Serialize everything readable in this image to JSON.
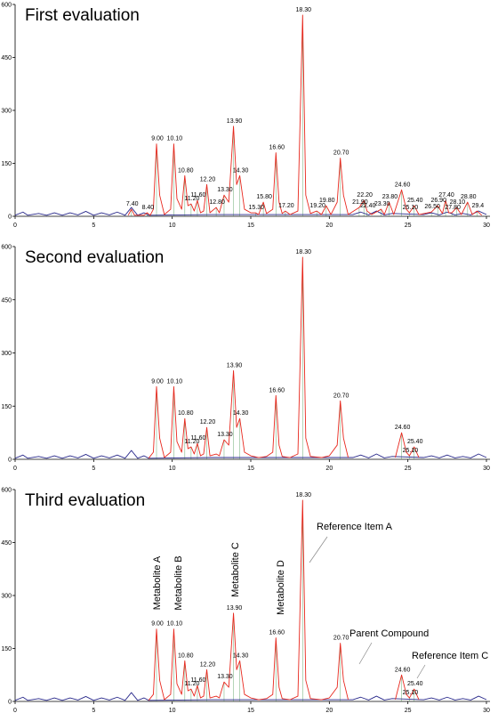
{
  "chart_data": [
    {
      "type": "line",
      "title": "First evaluation",
      "xlim": [
        0,
        30
      ],
      "xticks": [
        0,
        5,
        10,
        15,
        20,
        25,
        30
      ],
      "ylim": [
        0,
        600
      ],
      "yticks": [
        0,
        150,
        300,
        450,
        600
      ],
      "series": [
        {
          "color": "#2b2b8c",
          "x": [
            0,
            0.5,
            0.8,
            1.5,
            2,
            2.5,
            3,
            3.5,
            4,
            4.5,
            5,
            5.5,
            6,
            6.5,
            7,
            7.4,
            7.8,
            8.2,
            8.5,
            12.5,
            15,
            17.5,
            19.5,
            21.5,
            22,
            22.5,
            23,
            23.5,
            24,
            26,
            26.5,
            27,
            27.5,
            28,
            28.5,
            29,
            29.5,
            30
          ],
          "values": [
            3,
            12,
            3,
            8,
            3,
            10,
            3,
            10,
            4,
            14,
            3,
            10,
            4,
            12,
            3,
            25,
            3,
            10,
            3,
            5,
            5,
            5,
            5,
            5,
            12,
            4,
            15,
            4,
            8,
            5,
            10,
            4,
            12,
            4,
            8,
            4,
            15,
            5
          ]
        },
        {
          "color": "#e8281e",
          "x": [
            7.2,
            7.4,
            7.6,
            8.2,
            8.4,
            8.6,
            8.8,
            9.0,
            9.2,
            9.5,
            9.9,
            10.1,
            10.3,
            10.6,
            10.8,
            11.0,
            11.2,
            11.4,
            11.6,
            11.8,
            12.0,
            12.2,
            12.4,
            12.8,
            13.0,
            13.3,
            13.6,
            13.9,
            14.1,
            14.3,
            14.6,
            15.0,
            15.3,
            15.5,
            15.8,
            16.0,
            16.4,
            16.6,
            16.8,
            17.0,
            17.2,
            17.5,
            18.0,
            18.3,
            18.5,
            18.8,
            19.2,
            19.5,
            19.8,
            20.1,
            20.5,
            20.7,
            20.9,
            21.2,
            21.9,
            22.2,
            22.4,
            22.7,
            23.3,
            23.5,
            23.8,
            24.1,
            24.6,
            24.9,
            25.1,
            25.4,
            25.7,
            26.5,
            26.9,
            27.2,
            27.4,
            27.6,
            27.8,
            28.1,
            28.4,
            28.8,
            29.1,
            29.4,
            29.7
          ],
          "values": [
            3,
            20,
            3,
            3,
            10,
            3,
            20,
            205,
            60,
            5,
            20,
            205,
            50,
            20,
            115,
            30,
            35,
            15,
            45,
            10,
            15,
            90,
            10,
            25,
            10,
            60,
            40,
            255,
            90,
            115,
            20,
            10,
            10,
            5,
            40,
            8,
            20,
            180,
            40,
            8,
            15,
            5,
            15,
            570,
            60,
            8,
            15,
            5,
            30,
            5,
            40,
            165,
            60,
            5,
            25,
            45,
            15,
            5,
            20,
            5,
            40,
            5,
            75,
            20,
            10,
            30,
            5,
            12,
            30,
            8,
            45,
            10,
            10,
            25,
            5,
            40,
            5,
            15,
            3
          ]
        }
      ],
      "peaks": {
        "x": [
          7.4,
          8.4,
          9.0,
          10.1,
          10.8,
          11.2,
          11.6,
          12.2,
          12.8,
          13.3,
          13.9,
          14.3,
          15.3,
          15.8,
          16.6,
          17.2,
          18.3,
          19.2,
          19.8,
          20.7,
          21.9,
          22.2,
          22.4,
          23.3,
          23.8,
          24.6,
          25.1,
          25.4,
          26.5,
          26.9,
          27.4,
          27.8,
          28.1,
          28.8,
          29.4
        ],
        "x_labels": [
          "7.40",
          "8.40",
          "9.00",
          "10.10",
          "10.80",
          "11.20",
          "11.60",
          "12.20",
          "12.80",
          "13.30",
          "13.90",
          "14.30",
          "15.30",
          "15.80",
          "16.60",
          "17.20",
          "18.30",
          "19.20",
          "19.80",
          "20.70",
          "21.90",
          "22.20",
          "22.40",
          "23.30",
          "23.80",
          "24.60",
          "25.10",
          "25.40",
          "26.50",
          "26.90",
          "27.40",
          "27.80",
          "28.10",
          "28.80",
          "29.4"
        ],
        "values": [
          20,
          10,
          205,
          205,
          115,
          35,
          45,
          90,
          25,
          60,
          255,
          115,
          10,
          40,
          180,
          15,
          570,
          15,
          30,
          165,
          25,
          45,
          15,
          20,
          40,
          75,
          10,
          30,
          12,
          30,
          45,
          10,
          25,
          40,
          15
        ]
      }
    },
    {
      "type": "line",
      "title": "Second evaluation",
      "xlim": [
        0,
        30
      ],
      "xticks": [
        0,
        5,
        10,
        15,
        20,
        25,
        30
      ],
      "ylim": [
        0,
        600
      ],
      "yticks": [
        0,
        150,
        300,
        450,
        600
      ],
      "series": [
        {
          "color": "#2b2b8c",
          "x": [
            0,
            0.5,
            0.8,
            1.5,
            2,
            2.5,
            3,
            3.5,
            4,
            4.5,
            5,
            5.5,
            6,
            6.5,
            7,
            7.4,
            7.8,
            8.2,
            8.5,
            12.5,
            15,
            17.5,
            19.5,
            21.5,
            22,
            22.5,
            23,
            23.5,
            24,
            26,
            26.5,
            27,
            27.5,
            28,
            28.5,
            29,
            29.5,
            30
          ],
          "values": [
            3,
            12,
            3,
            8,
            3,
            10,
            3,
            10,
            4,
            14,
            3,
            10,
            4,
            12,
            3,
            25,
            3,
            10,
            3,
            5,
            5,
            5,
            5,
            5,
            12,
            4,
            15,
            4,
            8,
            5,
            10,
            4,
            12,
            4,
            8,
            4,
            15,
            5
          ]
        },
        {
          "color": "#e8281e",
          "x": [
            8.5,
            8.8,
            9.0,
            9.2,
            9.5,
            9.9,
            10.1,
            10.3,
            10.6,
            10.8,
            11.0,
            11.2,
            11.4,
            11.6,
            11.8,
            12.0,
            12.2,
            12.4,
            12.8,
            13.0,
            13.3,
            13.6,
            13.9,
            14.1,
            14.3,
            14.6,
            15.0,
            15.5,
            16.0,
            16.4,
            16.6,
            16.8,
            17.0,
            17.5,
            18.0,
            18.3,
            18.5,
            18.8,
            19.5,
            20.0,
            20.5,
            20.7,
            20.9,
            21.2,
            22.0,
            24.2,
            24.6,
            24.9,
            25.1,
            25.4,
            25.7
          ],
          "values": [
            3,
            20,
            205,
            60,
            5,
            20,
            205,
            50,
            20,
            115,
            30,
            35,
            15,
            45,
            10,
            15,
            90,
            10,
            15,
            10,
            55,
            40,
            250,
            90,
            115,
            20,
            10,
            5,
            8,
            20,
            180,
            40,
            8,
            5,
            15,
            570,
            60,
            8,
            5,
            10,
            40,
            165,
            60,
            5,
            null,
            5,
            75,
            20,
            10,
            35,
            5
          ]
        }
      ],
      "peaks": {
        "x": [
          9.0,
          10.1,
          10.8,
          11.2,
          11.6,
          12.2,
          13.3,
          13.9,
          14.3,
          16.6,
          18.3,
          20.7,
          24.6,
          25.1,
          25.4
        ],
        "x_labels": [
          "9.00",
          "10.10",
          "10.80",
          "11.20",
          "11.60",
          "12.20",
          "13.30",
          "13.90",
          "14.30",
          "16.60",
          "18.30",
          "20.70",
          "24.60",
          "25.10",
          "25.40"
        ],
        "values": [
          205,
          205,
          115,
          35,
          45,
          90,
          55,
          250,
          115,
          180,
          570,
          165,
          75,
          10,
          35
        ]
      }
    },
    {
      "type": "line",
      "title": "Third evaluation",
      "xlim": [
        0,
        30
      ],
      "xticks": [
        0,
        5,
        10,
        15,
        20,
        25,
        30
      ],
      "ylim": [
        0,
        600
      ],
      "yticks": [
        0,
        150,
        300,
        450,
        600
      ],
      "series": [
        {
          "color": "#2b2b8c",
          "x": [
            0,
            0.5,
            0.8,
            1.5,
            2,
            2.5,
            3,
            3.5,
            4,
            4.5,
            5,
            5.5,
            6,
            6.5,
            7,
            7.4,
            7.8,
            8.2,
            8.5,
            12.5,
            15,
            17.5,
            19.5,
            21.5,
            22,
            22.5,
            23,
            23.5,
            24,
            26,
            26.5,
            27,
            27.5,
            28,
            28.5,
            29,
            29.5,
            30
          ],
          "values": [
            3,
            12,
            3,
            8,
            3,
            10,
            3,
            10,
            4,
            14,
            3,
            10,
            4,
            12,
            3,
            25,
            3,
            10,
            3,
            5,
            5,
            5,
            5,
            5,
            12,
            4,
            15,
            4,
            8,
            5,
            10,
            4,
            12,
            4,
            8,
            4,
            15,
            5
          ]
        },
        {
          "color": "#e8281e",
          "x": [
            8.5,
            8.8,
            9.0,
            9.2,
            9.5,
            9.9,
            10.1,
            10.3,
            10.6,
            10.8,
            11.0,
            11.2,
            11.4,
            11.6,
            11.8,
            12.0,
            12.2,
            12.4,
            12.8,
            13.0,
            13.3,
            13.6,
            13.9,
            14.1,
            14.3,
            14.6,
            15.0,
            15.5,
            16.0,
            16.4,
            16.6,
            16.8,
            17.0,
            17.5,
            18.0,
            18.3,
            18.5,
            18.8,
            19.5,
            20.0,
            20.5,
            20.7,
            20.9,
            21.2,
            22.0,
            24.2,
            24.6,
            24.9,
            25.1,
            25.4,
            25.7
          ],
          "values": [
            3,
            20,
            205,
            60,
            5,
            20,
            205,
            50,
            20,
            115,
            30,
            35,
            15,
            45,
            10,
            15,
            90,
            10,
            15,
            10,
            55,
            40,
            250,
            90,
            115,
            20,
            10,
            5,
            8,
            20,
            180,
            40,
            8,
            5,
            15,
            570,
            60,
            8,
            5,
            10,
            40,
            165,
            60,
            5,
            null,
            5,
            75,
            20,
            10,
            35,
            5
          ]
        }
      ],
      "peaks": {
        "x": [
          9.0,
          10.1,
          10.8,
          11.2,
          11.6,
          12.2,
          13.3,
          13.9,
          14.3,
          16.6,
          18.3,
          20.7,
          24.6,
          25.1,
          25.4
        ],
        "x_labels": [
          "9.00",
          "10.10",
          "10.80",
          "11.20",
          "11.60",
          "12.20",
          "13.30",
          "13.90",
          "14.30",
          "16.60",
          "18.30",
          "20.70",
          "24.60",
          "25.10",
          "25.40"
        ],
        "values": [
          205,
          205,
          115,
          35,
          45,
          90,
          55,
          250,
          115,
          180,
          570,
          165,
          75,
          10,
          35
        ]
      },
      "annotations": [
        "Metabolite A",
        "Metabolite B",
        "Metabolite C",
        "Metabolite D",
        "Reference Item A",
        "Parent Compound",
        "Reference Item C"
      ]
    }
  ]
}
